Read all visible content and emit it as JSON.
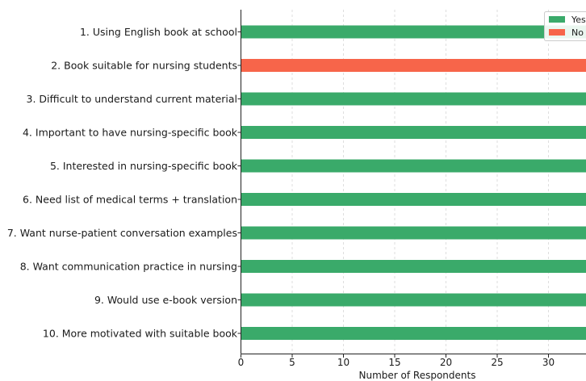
{
  "chart_data": {
    "type": "bar",
    "orientation": "horizontal",
    "categories": [
      "1. Using English book at school",
      "2. Book suitable for nursing students",
      "3. Difficult to understand current material",
      "4. Important to have nursing-specific book",
      "5. Interested in nursing-specific book",
      "6. Need list of medical terms + translation",
      "7. Want nurse-patient conversation examples",
      "8. Want communication practice in nursing",
      "9. Would use e-book version",
      "10. More motivated with suitable book"
    ],
    "series": [
      {
        "name": "Yes",
        "color": "#3aaa6a",
        "values": [
          34,
          0,
          34,
          34,
          34,
          34,
          34,
          34,
          34,
          34
        ]
      },
      {
        "name": "No",
        "color": "#f7654a",
        "values": [
          0,
          34,
          0,
          0,
          0,
          0,
          0,
          0,
          0,
          0
        ]
      }
    ],
    "xlabel": "Number of Respondents",
    "ylabel": "",
    "xlim": [
      0,
      34
    ],
    "xticks": [
      0,
      5,
      10,
      15,
      20,
      25,
      30
    ],
    "grid": "vertical",
    "legend": "top-right"
  }
}
